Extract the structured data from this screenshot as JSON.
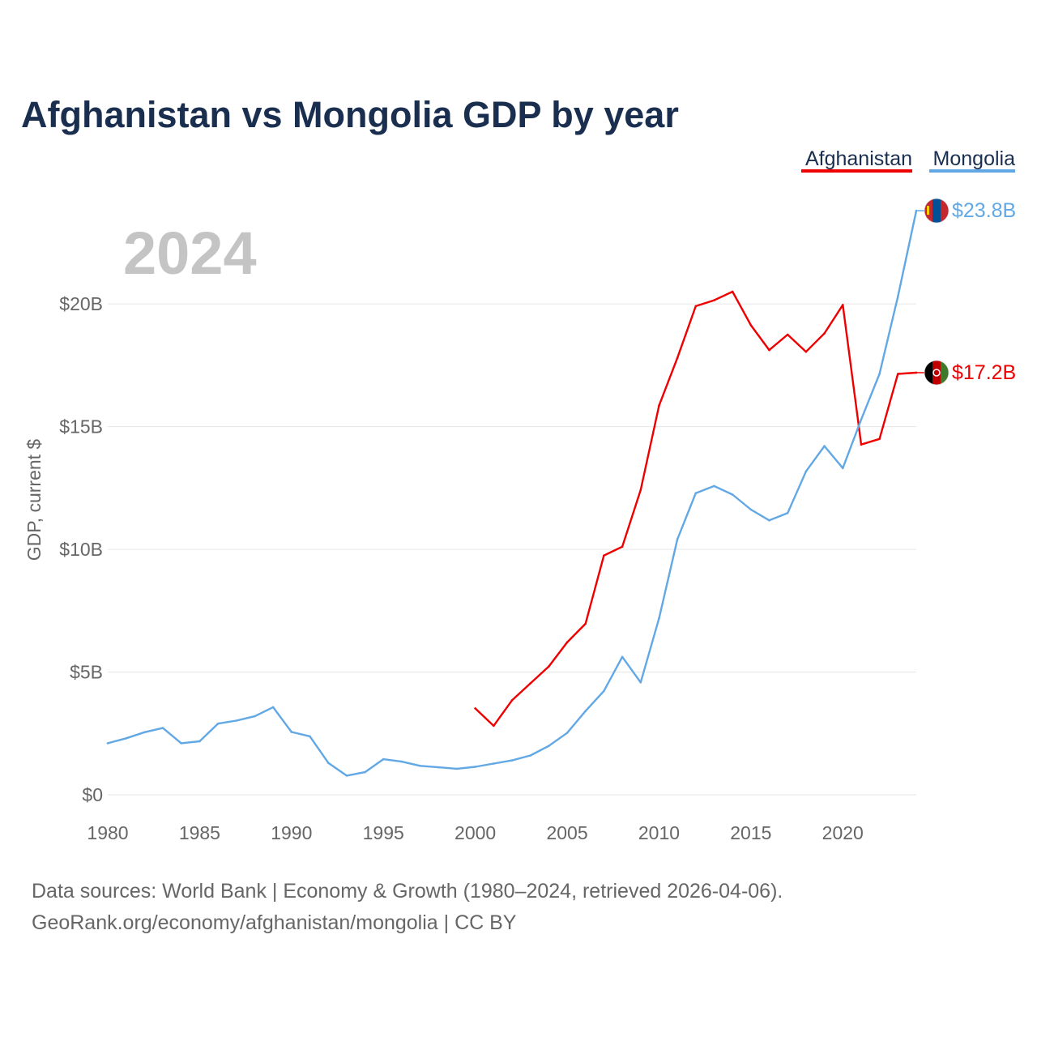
{
  "chart_data": {
    "type": "line",
    "title": "Afghanistan vs Mongolia GDP by year",
    "year_label": "2024",
    "ylabel": "GDP, current $",
    "xlabel": "",
    "xlim": [
      1980,
      2024
    ],
    "ylim": [
      0,
      24
    ],
    "grid": true,
    "legend_position": "top-right",
    "x_ticks": [
      1980,
      1985,
      1990,
      1995,
      2000,
      2005,
      2010,
      2015,
      2020
    ],
    "x_tick_labels": [
      "1980",
      "1985",
      "1990",
      "1995",
      "2000",
      "2005",
      "2010",
      "2015",
      "2020"
    ],
    "y_ticks": [
      0,
      5,
      10,
      15,
      20
    ],
    "y_tick_labels": [
      "$0",
      "$5B",
      "$10B",
      "$15B",
      "$20B"
    ],
    "series": [
      {
        "name": "Afghanistan",
        "color": "#ee0000",
        "end_label": "$17.2B",
        "flag_icon": "afghanistan-flag-icon",
        "x": [
          2000,
          2001,
          2002,
          2003,
          2004,
          2005,
          2006,
          2007,
          2008,
          2009,
          2010,
          2011,
          2012,
          2013,
          2014,
          2015,
          2016,
          2017,
          2018,
          2019,
          2020,
          2021,
          2022,
          2023,
          2024
        ],
        "values": [
          3.52,
          2.81,
          3.85,
          4.54,
          5.23,
          6.21,
          6.97,
          9.75,
          10.11,
          12.42,
          15.86,
          17.8,
          19.91,
          20.15,
          20.5,
          19.13,
          18.12,
          18.75,
          18.05,
          18.8,
          19.96,
          14.27,
          14.5,
          17.15,
          17.2
        ]
      },
      {
        "name": "Mongolia",
        "color": "#62a8e5",
        "end_label": "$23.8B",
        "flag_icon": "mongolia-flag-icon",
        "x": [
          1980,
          1981,
          1982,
          1983,
          1984,
          1985,
          1986,
          1987,
          1988,
          1989,
          1990,
          1991,
          1992,
          1993,
          1994,
          1995,
          1996,
          1997,
          1998,
          1999,
          2000,
          2001,
          2002,
          2003,
          2004,
          2005,
          2006,
          2007,
          2008,
          2009,
          2010,
          2011,
          2012,
          2013,
          2014,
          2015,
          2016,
          2017,
          2018,
          2019,
          2020,
          2021,
          2022,
          2023,
          2024
        ],
        "values": [
          2.1,
          2.3,
          2.55,
          2.72,
          2.1,
          2.18,
          2.9,
          3.02,
          3.2,
          3.57,
          2.56,
          2.38,
          1.3,
          0.78,
          0.92,
          1.45,
          1.35,
          1.18,
          1.12,
          1.06,
          1.14,
          1.27,
          1.4,
          1.6,
          1.99,
          2.52,
          3.41,
          4.23,
          5.62,
          4.58,
          7.19,
          10.41,
          12.29,
          12.58,
          12.23,
          11.62,
          11.18,
          11.48,
          13.18,
          14.21,
          13.31,
          15.29,
          17.15,
          20.3,
          23.8
        ]
      }
    ]
  },
  "footer": {
    "source_line": "Data sources: World Bank | Economy & Growth (1980–2024, retrieved 2026-04-06).",
    "credit_line": "GeoRank.org/economy/afghanistan/mongolia | CC BY"
  }
}
